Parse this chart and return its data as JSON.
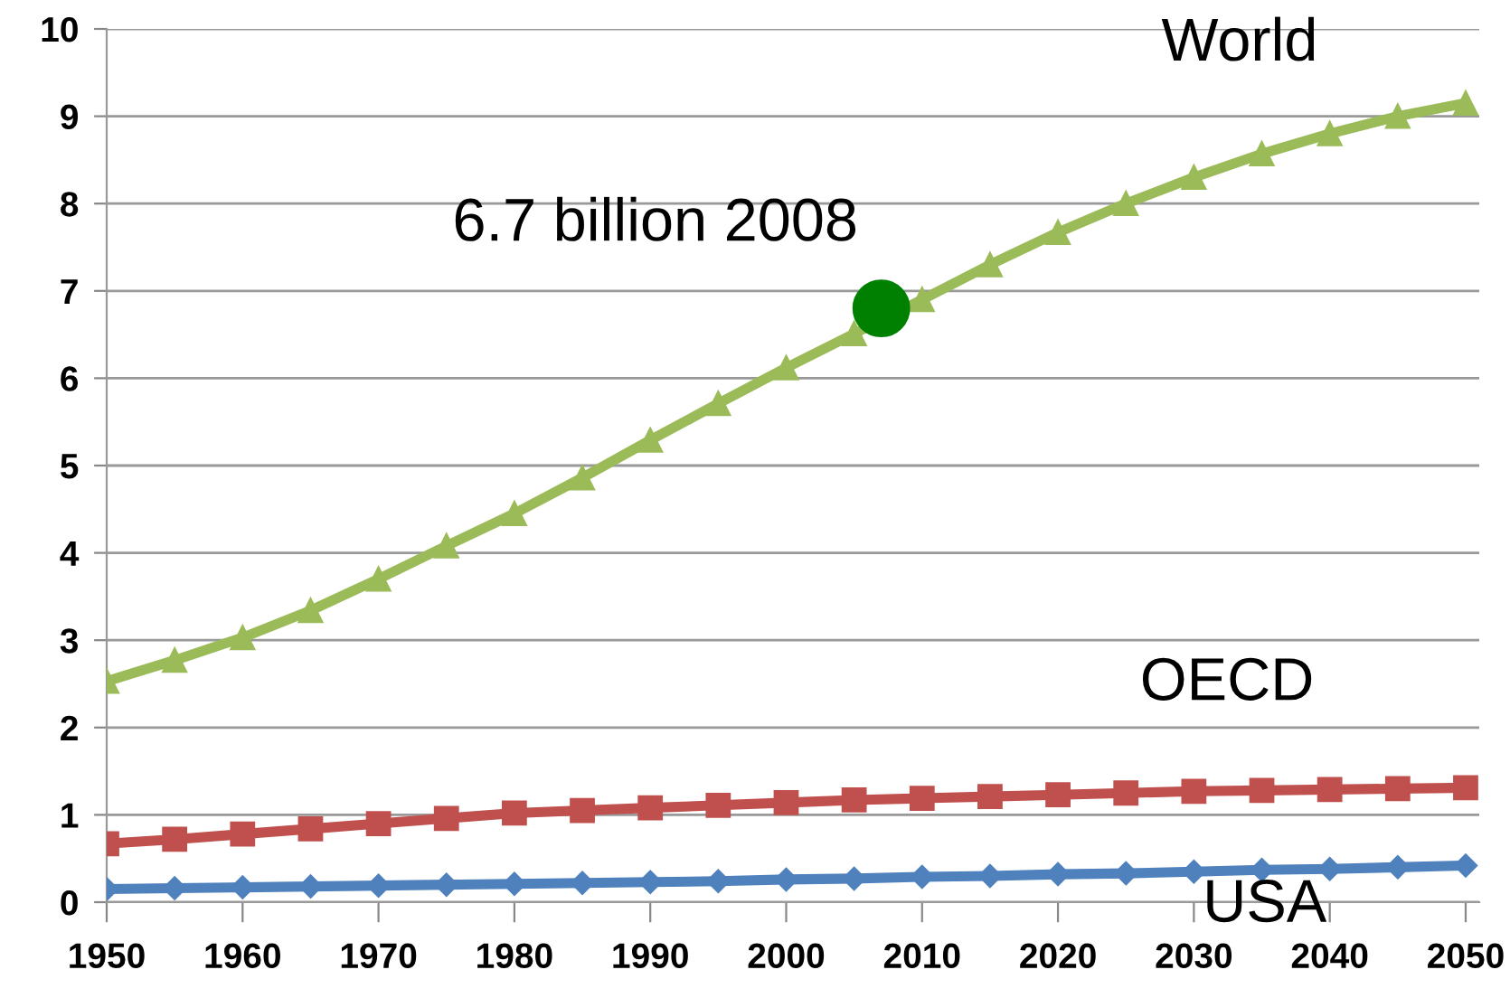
{
  "chart_data": {
    "type": "line",
    "x": [
      1950,
      1955,
      1960,
      1965,
      1970,
      1975,
      1980,
      1985,
      1990,
      1995,
      2000,
      2005,
      2010,
      2015,
      2020,
      2025,
      2030,
      2035,
      2040,
      2045,
      2050
    ],
    "series": [
      {
        "name": "World",
        "color": "#9bbb59",
        "marker": "triangle",
        "values": [
          2.53,
          2.77,
          3.03,
          3.34,
          3.7,
          4.08,
          4.45,
          4.86,
          5.29,
          5.71,
          6.12,
          6.51,
          6.9,
          7.3,
          7.67,
          8.0,
          8.3,
          8.57,
          8.8,
          9.0,
          9.15
        ]
      },
      {
        "name": "OECD",
        "color": "#c0504d",
        "marker": "square",
        "values": [
          0.67,
          0.72,
          0.78,
          0.84,
          0.9,
          0.96,
          1.02,
          1.05,
          1.08,
          1.11,
          1.14,
          1.17,
          1.19,
          1.21,
          1.23,
          1.25,
          1.27,
          1.28,
          1.29,
          1.3,
          1.31
        ]
      },
      {
        "name": "USA",
        "color": "#4f81bd",
        "marker": "diamond",
        "values": [
          0.15,
          0.16,
          0.17,
          0.18,
          0.19,
          0.2,
          0.21,
          0.22,
          0.23,
          0.24,
          0.26,
          0.27,
          0.29,
          0.3,
          0.32,
          0.33,
          0.35,
          0.37,
          0.38,
          0.4,
          0.42
        ]
      },
      {
        "type": "scatter",
        "color": "#008000",
        "marker": "circle",
        "x": [
          2007
        ],
        "values": [
          6.8
        ]
      }
    ],
    "annotations": [
      {
        "text": "6.7 billion 2008",
        "x": 2007,
        "y": 6.8
      }
    ],
    "xlim": [
      1950,
      2051
    ],
    "xticks": [
      1950,
      1960,
      1970,
      1980,
      1990,
      2000,
      2010,
      2020,
      2030,
      2040,
      2050
    ],
    "ylim": [
      0,
      10
    ],
    "yticks": [
      0,
      1,
      2,
      3,
      4,
      5,
      6,
      7,
      8,
      9,
      10
    ],
    "grid": "y",
    "legend": false
  }
}
